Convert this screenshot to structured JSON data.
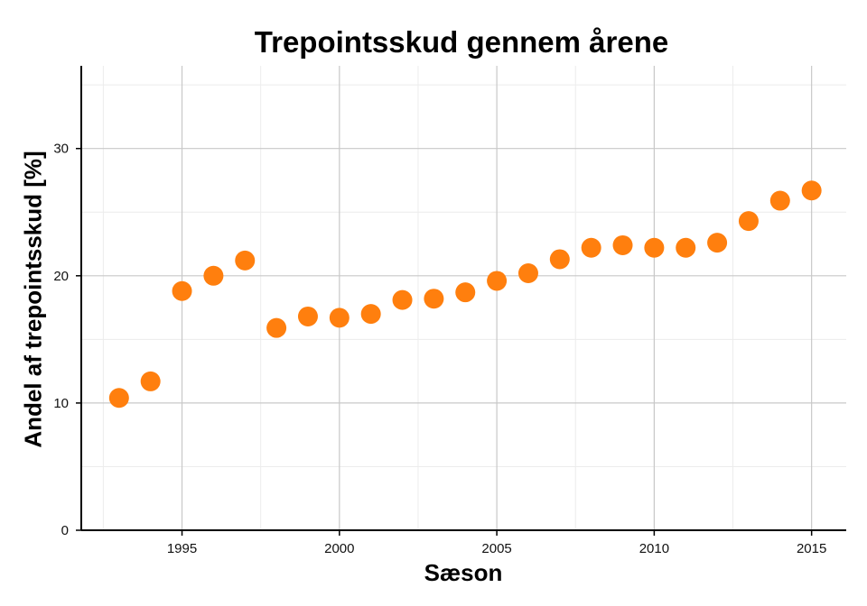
{
  "chart_data": {
    "type": "scatter",
    "title": "Trepointsskud gennem årene",
    "xlabel": "Sæson",
    "ylabel": "Andel af trepointsskud [%]",
    "xlim": [
      1991.8,
      2016.1
    ],
    "ylim": [
      0,
      36.5
    ],
    "x_ticks": [
      1995,
      2000,
      2005,
      2010,
      2015
    ],
    "y_ticks": [
      0,
      10,
      20,
      30
    ],
    "grid": true,
    "marker_color": "#ff7f0e",
    "points": [
      {
        "x": 1993,
        "y": 10.4
      },
      {
        "x": 1994,
        "y": 11.7
      },
      {
        "x": 1995,
        "y": 18.8
      },
      {
        "x": 1996,
        "y": 20.0
      },
      {
        "x": 1997,
        "y": 21.2
      },
      {
        "x": 1998,
        "y": 15.9
      },
      {
        "x": 1999,
        "y": 16.8
      },
      {
        "x": 2000,
        "y": 16.7
      },
      {
        "x": 2001,
        "y": 17.0
      },
      {
        "x": 2002,
        "y": 18.1
      },
      {
        "x": 2003,
        "y": 18.2
      },
      {
        "x": 2004,
        "y": 18.7
      },
      {
        "x": 2005,
        "y": 19.6
      },
      {
        "x": 2006,
        "y": 20.2
      },
      {
        "x": 2007,
        "y": 21.3
      },
      {
        "x": 2008,
        "y": 22.2
      },
      {
        "x": 2009,
        "y": 22.4
      },
      {
        "x": 2010,
        "y": 22.2
      },
      {
        "x": 2011,
        "y": 22.2
      },
      {
        "x": 2012,
        "y": 22.6
      },
      {
        "x": 2013,
        "y": 24.3
      },
      {
        "x": 2014,
        "y": 25.9
      },
      {
        "x": 2015,
        "y": 26.7
      }
    ]
  }
}
